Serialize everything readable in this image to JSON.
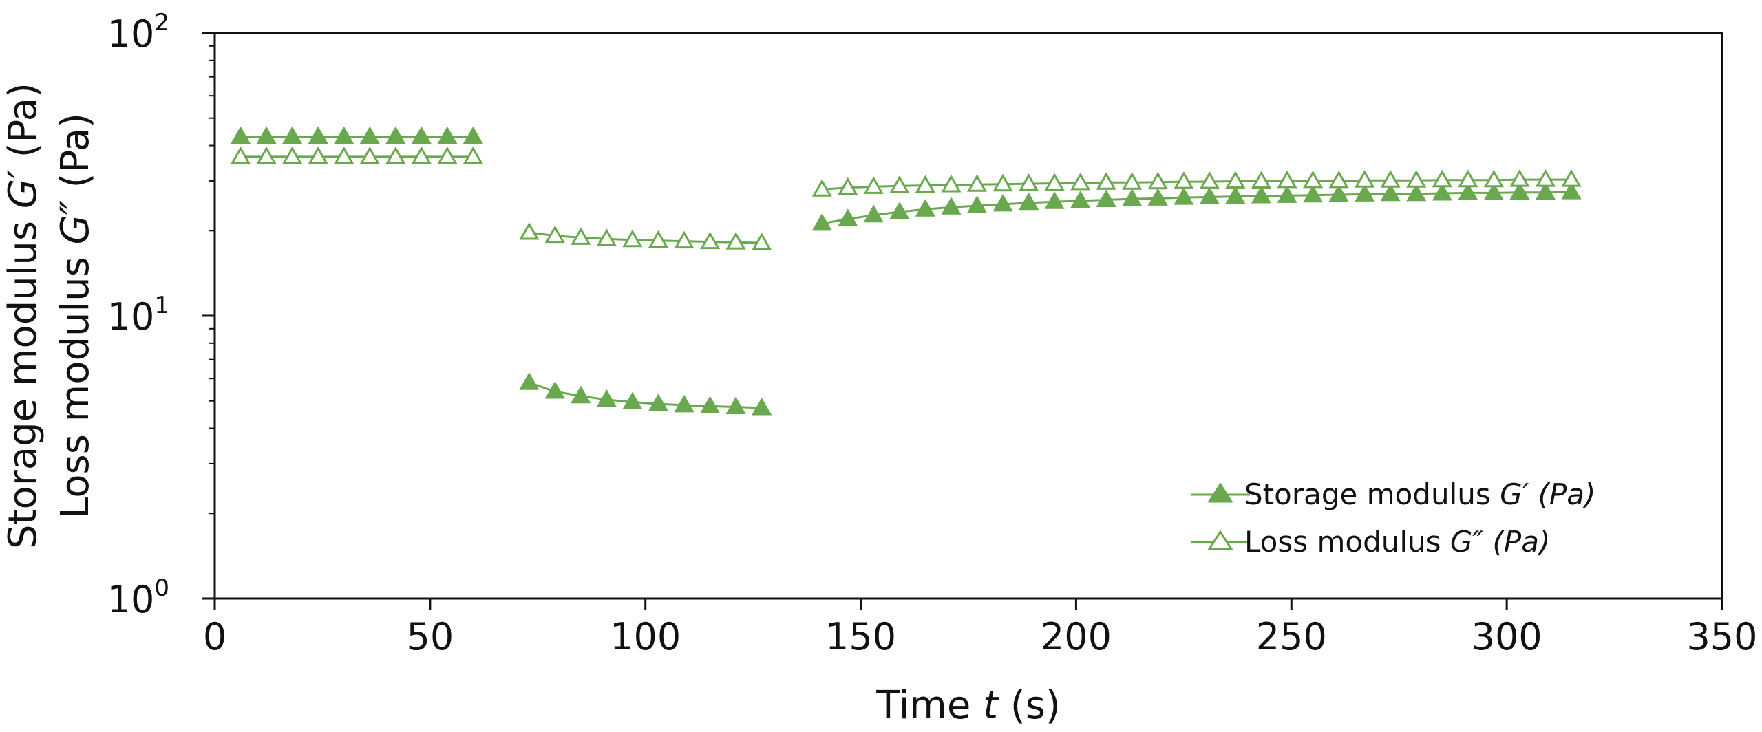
{
  "chart_data": {
    "type": "line",
    "title": "",
    "xlabel": "Time t (s)",
    "xlabel_parts": [
      "Time ",
      "t",
      " (s)"
    ],
    "ylabel_lines": [
      [
        "Storage modulus ",
        "G′",
        " (Pa)"
      ],
      [
        "Loss modulus ",
        "G″",
        " (Pa)"
      ]
    ],
    "xlim": [
      0,
      350
    ],
    "ylim": [
      1,
      100
    ],
    "yscale": "log",
    "xticks": [
      "0",
      "50",
      "100",
      "150",
      "200",
      "250",
      "300",
      "350"
    ],
    "yticks": [
      {
        "base": "10",
        "exp": "0"
      },
      {
        "base": "10",
        "exp": "1"
      },
      {
        "base": "10",
        "exp": "2"
      }
    ],
    "grid": false,
    "legend_position": "bottom-right",
    "series": [
      {
        "name": "Storage modulus G′ (Pa)",
        "legend_parts": [
          "Storage modulus ",
          "G′ (Pa)"
        ],
        "marker": "filled-triangle",
        "color": "#6aa84f",
        "segments": [
          {
            "x": [
              6,
              12,
              18,
              24,
              30,
              36,
              42,
              48,
              54,
              60
            ],
            "y": [
              43,
              43,
              43,
              43,
              43,
              43,
              43,
              43,
              43,
              43
            ]
          },
          {
            "x": [
              73,
              79,
              85,
              91,
              97,
              103,
              109,
              115,
              121,
              127
            ],
            "y": [
              5.8,
              5.4,
              5.2,
              5.05,
              4.95,
              4.88,
              4.83,
              4.79,
              4.76,
              4.72
            ]
          },
          {
            "x": [
              141,
              147,
              153,
              159,
              165,
              171,
              177,
              183,
              189,
              195,
              201,
              207,
              213,
              219,
              225,
              231,
              237,
              243,
              249,
              255,
              261,
              267,
              273,
              279,
              285,
              291,
              297,
              303,
              309,
              315
            ],
            "y": [
              21.2,
              22.0,
              22.7,
              23.3,
              23.8,
              24.2,
              24.5,
              24.8,
              25.1,
              25.3,
              25.5,
              25.7,
              25.9,
              26.0,
              26.2,
              26.3,
              26.4,
              26.5,
              26.6,
              26.7,
              26.8,
              26.9,
              27.0,
              27.0,
              27.1,
              27.2,
              27.2,
              27.3,
              27.3,
              27.4
            ]
          }
        ]
      },
      {
        "name": "Loss modulus G″ (Pa)",
        "legend_parts": [
          "Loss modulus ",
          "G″ (Pa)"
        ],
        "marker": "open-triangle",
        "color": "#6aa84f",
        "segments": [
          {
            "x": [
              6,
              12,
              18,
              24,
              30,
              36,
              42,
              48,
              54,
              60
            ],
            "y": [
              36.5,
              36.5,
              36.5,
              36.5,
              36.5,
              36.5,
              36.5,
              36.5,
              36.5,
              36.5
            ]
          },
          {
            "x": [
              73,
              79,
              85,
              91,
              97,
              103,
              109,
              115,
              121,
              127
            ],
            "y": [
              19.7,
              19.2,
              18.9,
              18.7,
              18.55,
              18.45,
              18.35,
              18.25,
              18.2,
              18.1
            ]
          },
          {
            "x": [
              141,
              147,
              153,
              159,
              165,
              171,
              177,
              183,
              189,
              195,
              201,
              207,
              213,
              219,
              225,
              231,
              237,
              243,
              249,
              255,
              261,
              267,
              273,
              279,
              285,
              291,
              297,
              303,
              309,
              315
            ],
            "y": [
              28.0,
              28.4,
              28.6,
              28.8,
              28.9,
              29.0,
              29.1,
              29.2,
              29.3,
              29.4,
              29.5,
              29.6,
              29.6,
              29.7,
              29.8,
              29.8,
              29.9,
              29.9,
              30.0,
              30.0,
              30.0,
              30.1,
              30.1,
              30.1,
              30.2,
              30.2,
              30.2,
              30.3,
              30.3,
              30.3
            ]
          }
        ]
      }
    ]
  }
}
